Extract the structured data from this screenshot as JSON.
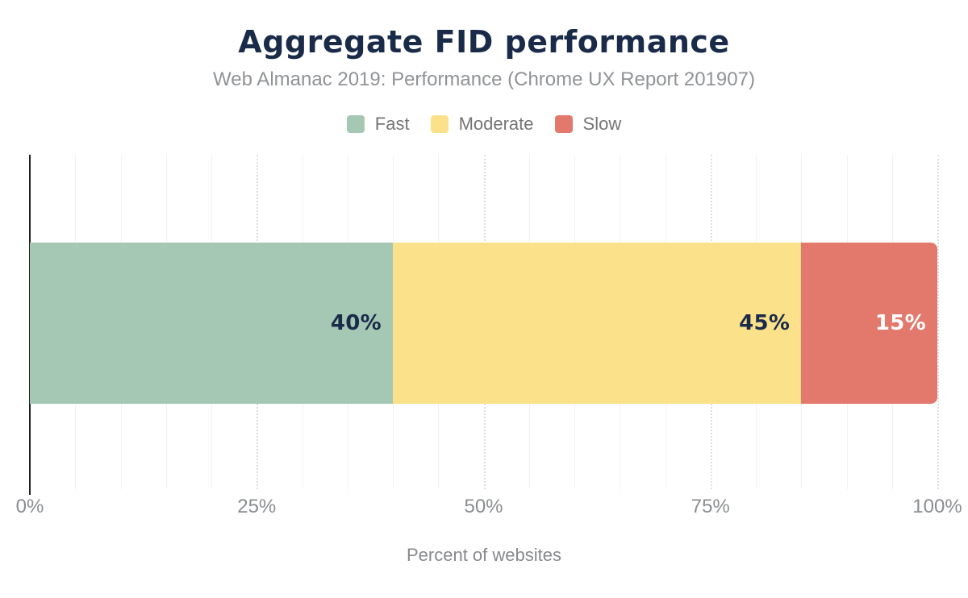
{
  "colors": {
    "title": "#1a2b49",
    "subtitle": "#909396",
    "legend_text": "#757575",
    "tick_text": "#8a8d90",
    "axis_title_text": "#87898c",
    "axis_line": "#212121",
    "grid_minor": "#f2f2f2",
    "grid_major": "#dedede",
    "background": "#ffffff"
  },
  "chart_data": {
    "type": "bar",
    "orientation": "horizontal",
    "stacked": true,
    "title": "Aggregate FID performance",
    "subtitle": "Web Almanac 2019: Performance (Chrome UX Report 201907)",
    "xlabel": "Percent of websites",
    "xlim": [
      0,
      100
    ],
    "x_ticks": [
      {
        "label": "0%",
        "value": 0
      },
      {
        "label": "25%",
        "value": 25
      },
      {
        "label": "50%",
        "value": 50
      },
      {
        "label": "75%",
        "value": 75
      },
      {
        "label": "100%",
        "value": 100
      }
    ],
    "gridlines": {
      "minor_step": 5,
      "major_step": 25,
      "major_style": "dotted"
    },
    "legend_position": "top",
    "series": [
      {
        "name": "Fast",
        "value": 40,
        "label": "40%",
        "color": "#a5c8b4",
        "label_color": "#1a2b49"
      },
      {
        "name": "Moderate",
        "value": 45,
        "label": "45%",
        "color": "#fce18b",
        "label_color": "#1a2b49"
      },
      {
        "name": "Slow",
        "value": 15,
        "label": "15%",
        "color": "#e3796c",
        "label_color": "#ffffff"
      }
    ]
  }
}
